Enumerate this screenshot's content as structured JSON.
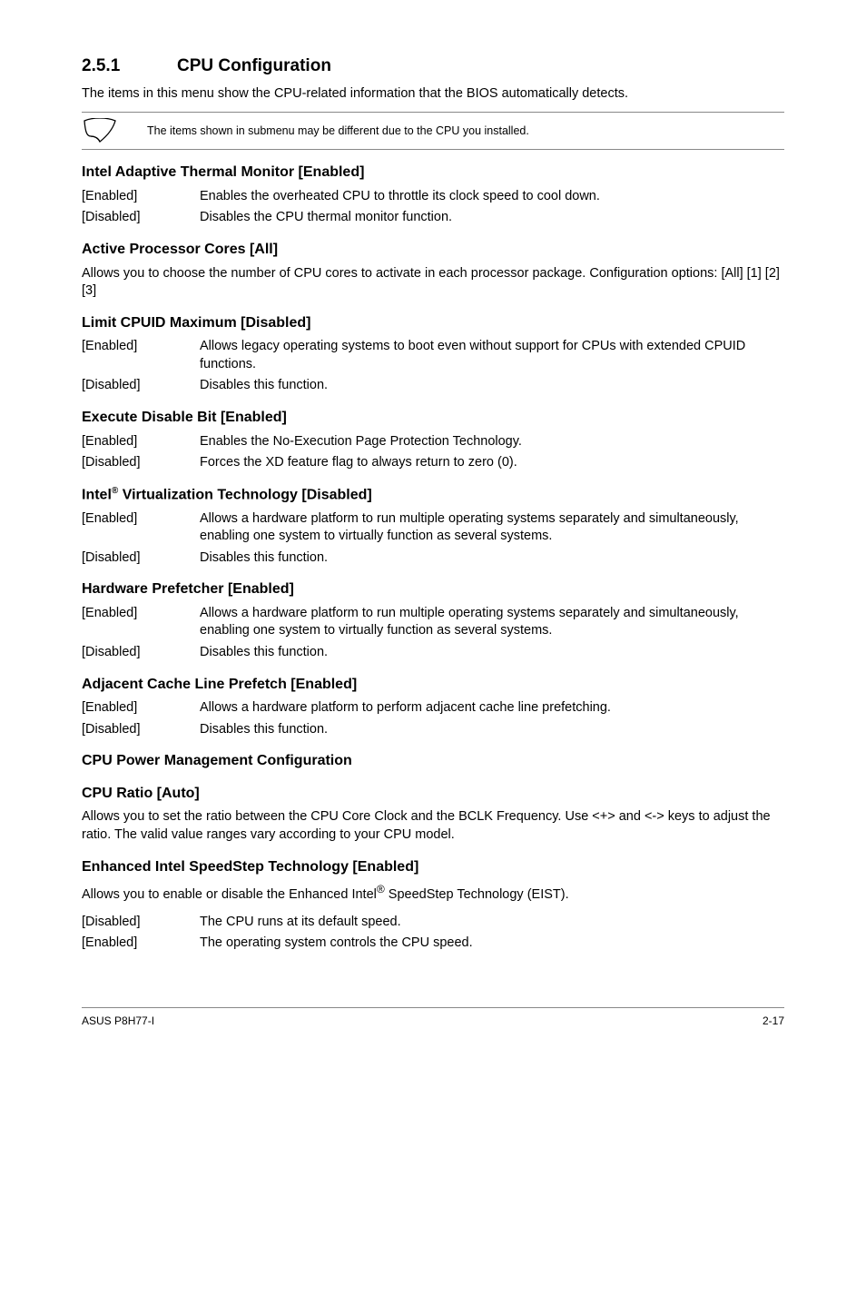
{
  "section": {
    "number": "2.5.1",
    "title": "CPU Configuration",
    "intro": "The items in this menu show the CPU-related information that the BIOS automatically detects."
  },
  "note": {
    "text": "The items shown in submenu may be different due to the CPU you installed."
  },
  "blocks": [
    {
      "heading": "Intel Adaptive Thermal Monitor [Enabled]",
      "rows": [
        {
          "key": "[Enabled]",
          "val": "Enables the overheated CPU to throttle its clock speed to cool down."
        },
        {
          "key": "[Disabled]",
          "val": "Disables the CPU thermal monitor function."
        }
      ]
    },
    {
      "heading": "Active Processor Cores [All]",
      "para": "Allows you to choose the number of CPU cores to activate in each processor package. Configuration options: [All] [1] [2] [3]"
    },
    {
      "heading": "Limit CPUID Maximum [Disabled]",
      "rows": [
        {
          "key": "[Enabled]",
          "val": "Allows legacy operating systems to boot even without support for CPUs with extended CPUID functions."
        },
        {
          "key": "[Disabled]",
          "val": "Disables this function."
        }
      ]
    },
    {
      "heading": "Execute Disable Bit [Enabled]",
      "rows": [
        {
          "key": "[Enabled]",
          "val": "Enables the No-Execution Page Protection Technology."
        },
        {
          "key": "[Disabled]",
          "val": "Forces the XD feature flag to always return to zero (0)."
        }
      ]
    },
    {
      "heading_html": "Intel<sup>®</sup> Virtualization Technology [Disabled]",
      "heading": "Intel® Virtualization Technology [Disabled]",
      "rows": [
        {
          "key": "[Enabled]",
          "val": "Allows a hardware platform to run multiple operating systems separately and simultaneously, enabling one system to virtually function as several systems."
        },
        {
          "key": "[Disabled]",
          "val": "Disables this function."
        }
      ]
    },
    {
      "heading": "Hardware Prefetcher [Enabled]",
      "rows": [
        {
          "key": "[Enabled]",
          "val": "Allows a hardware platform to run multiple operating systems separately and simultaneously, enabling one system to virtually function as several systems."
        },
        {
          "key": "[Disabled]",
          "val": "Disables this function."
        }
      ]
    },
    {
      "heading": "Adjacent Cache Line Prefetch [Enabled]",
      "rows": [
        {
          "key": "[Enabled]",
          "val": "Allows a hardware platform to perform adjacent cache line prefetching."
        },
        {
          "key": "[Disabled]",
          "val": "Disables this function."
        }
      ]
    },
    {
      "heading": "CPU Power Management Configuration"
    },
    {
      "heading": "CPU Ratio [Auto]",
      "para": "Allows you to set the ratio between the CPU Core Clock and the BCLK Frequency. Use <+> and <-> keys to adjust the ratio. The valid value ranges vary according to your CPU model."
    },
    {
      "heading": "Enhanced Intel SpeedStep Technology [Enabled]",
      "para_html": "Allows you to enable or disable the Enhanced Intel<sup>®</sup> SpeedStep Technology (EIST).",
      "para": "Allows you to enable or disable the Enhanced Intel® SpeedStep Technology (EIST).",
      "rows": [
        {
          "key": "[Disabled]",
          "val": "The CPU runs at its default speed."
        },
        {
          "key": "[Enabled]",
          "val": "The operating system controls the CPU speed."
        }
      ]
    }
  ],
  "footer": {
    "left": "ASUS P8H77-I",
    "right": "2-17"
  }
}
